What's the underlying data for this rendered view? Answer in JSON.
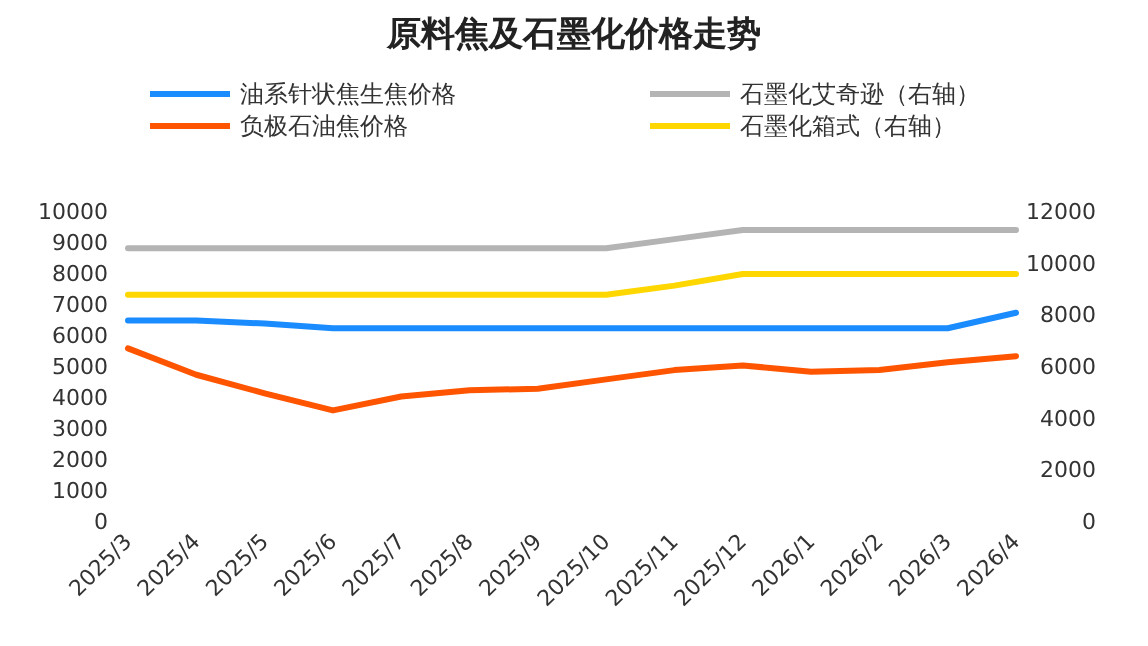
{
  "chart_data": {
    "type": "line",
    "title": "原料焦及石墨化价格走势",
    "categories": [
      "2025/3",
      "2025/4",
      "2025/5",
      "2025/6",
      "2025/7",
      "2025/8",
      "2025/9",
      "2025/10",
      "2025/11",
      "2025/12",
      "2026/1",
      "2026/2",
      "2026/3",
      "2026/4"
    ],
    "series": [
      {
        "name": "油系针状焦生焦价格",
        "color": "#1a8cff",
        "values": [
          6500,
          6500,
          6400,
          6250,
          6250,
          6250,
          6250,
          6250,
          6250,
          6250,
          6250,
          6250,
          6250,
          6750
        ]
      },
      {
        "name": "负极石油焦价格",
        "color": "#ff5500",
        "values": [
          5600,
          4750,
          4150,
          3600,
          4050,
          4250,
          4300,
          4600,
          4900,
          5050,
          4850,
          4900,
          5150,
          5350
        ]
      },
      {
        "name": "石墨化艾奇逊（右轴）",
        "color": "#b4b4b4",
        "axis": "y2",
        "values": [
          10600,
          10600,
          10600,
          10600,
          10600,
          10600,
          10600,
          10600,
          10950,
          11300,
          11300,
          11300,
          11300,
          11300
        ]
      },
      {
        "name": "石墨化箱式（右轴）",
        "color": "#ffd700",
        "axis": "y2",
        "values": [
          8800,
          8800,
          8800,
          8800,
          8800,
          8800,
          8800,
          8800,
          9150,
          9600,
          9600,
          9600,
          9600,
          9600
        ]
      }
    ],
    "ylim": [
      0,
      10000
    ],
    "yticks": [
      0,
      1000,
      2000,
      3000,
      4000,
      5000,
      6000,
      7000,
      8000,
      9000,
      10000
    ],
    "y2lim": [
      0,
      12000
    ],
    "y2ticks": [
      0,
      2000,
      4000,
      6000,
      8000,
      10000,
      12000
    ],
    "grid": false,
    "legend": "top",
    "marker": "none",
    "line_style": "solid"
  }
}
